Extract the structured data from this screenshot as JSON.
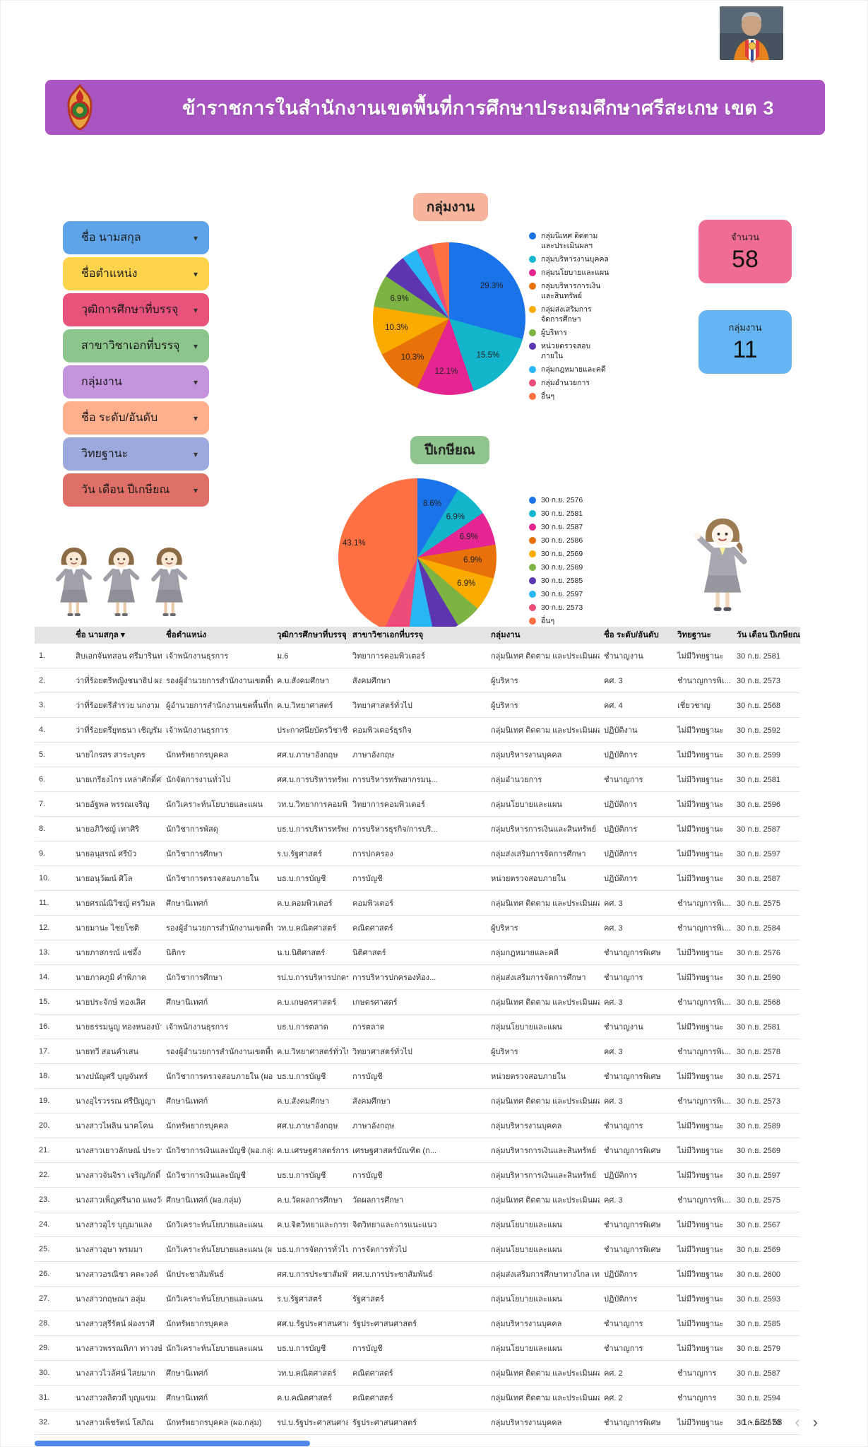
{
  "header": {
    "title": "ข้าราชการในสำนักงานเขตพื้นที่การศึกษาประถมศึกษาศรีสะเกษ เขต 3"
  },
  "filters": {
    "caret": "▾",
    "items": [
      {
        "label": "ชื่อ นามสกุล",
        "color": "#5FA4E8"
      },
      {
        "label": "ชื่อตำแหน่ง",
        "color": "#FFD44D"
      },
      {
        "label": "วุฒิการศึกษาที่บรรจุ",
        "color": "#E85479"
      },
      {
        "label": "สาขาวิชาเอกที่บรรจุ",
        "color": "#8CC68C"
      },
      {
        "label": "กลุ่มงาน",
        "color": "#C393DC"
      },
      {
        "label": "ชื่อ ระดับ/อันดับ",
        "color": "#FFAF8C"
      },
      {
        "label": "วิทยฐานะ",
        "color": "#9DA9DD"
      },
      {
        "label": "วัน เดือน ปีเกษียณ",
        "color": "#E07067"
      }
    ]
  },
  "stats": {
    "cards": [
      {
        "label": "จำนวน",
        "value": "58",
        "color": "#EF6C94"
      },
      {
        "label": "กลุ่มงาน",
        "value": "11",
        "color": "#66B5F3"
      }
    ]
  },
  "chart_data": [
    {
      "type": "pie",
      "title": "กลุ่มงาน",
      "legend_position": "right",
      "slices": [
        {
          "label": "กลุ่มนิเทศ ติดตาม และประเมินผลฯ",
          "value": 29.3,
          "color": "#1A73E8",
          "pct_label": "29.3%"
        },
        {
          "label": "กลุ่มบริหารงานบุคคล",
          "value": 15.5,
          "color": "#12B5CB",
          "pct_label": "15.5%"
        },
        {
          "label": "กลุ่มนโยบายและแผน",
          "value": 12.1,
          "color": "#E52592",
          "pct_label": "12.1%"
        },
        {
          "label": "กลุ่มบริหารการเงินและสินทรัพย์",
          "value": 10.3,
          "color": "#E8710A",
          "pct_label": "10.3%"
        },
        {
          "label": "กลุ่มส่งเสริมการจัดการศึกษา",
          "value": 10.3,
          "color": "#F9AB00",
          "pct_label": "10.3%"
        },
        {
          "label": "ผู้บริหาร",
          "value": 6.9,
          "color": "#7CB342",
          "pct_label": "6.9%"
        },
        {
          "label": "หน่วยตรวจสอบภายใน",
          "value": 5.2,
          "color": "#5E35B1",
          "pct_label": ""
        },
        {
          "label": "กลุ่มกฎหมายและคดี",
          "value": 3.4,
          "color": "#29B6F6",
          "pct_label": ""
        },
        {
          "label": "กลุ่มอำนวยการ",
          "value": 3.4,
          "color": "#ED4C78",
          "pct_label": ""
        },
        {
          "label": "อื่นๆ",
          "value": 3.6,
          "color": "#FF7043",
          "pct_label": ""
        }
      ]
    },
    {
      "type": "pie",
      "title": "ปีเกษียณ",
      "legend_position": "right",
      "slices": [
        {
          "label": "30 ก.ย. 2576",
          "value": 8.6,
          "color": "#1A73E8",
          "pct_label": "8.6%"
        },
        {
          "label": "30 ก.ย. 2581",
          "value": 6.9,
          "color": "#12B5CB",
          "pct_label": "6.9%"
        },
        {
          "label": "30 ก.ย. 2587",
          "value": 6.9,
          "color": "#E52592",
          "pct_label": "6.9%"
        },
        {
          "label": "30 ก.ย. 2586",
          "value": 6.9,
          "color": "#E8710A",
          "pct_label": "6.9%"
        },
        {
          "label": "30 ก.ย. 2569",
          "value": 6.9,
          "color": "#F9AB00",
          "pct_label": "6.9%"
        },
        {
          "label": "30 ก.ย. 2589",
          "value": 5.2,
          "color": "#7CB342",
          "pct_label": ""
        },
        {
          "label": "30 ก.ย. 2585",
          "value": 5.2,
          "color": "#5E35B1",
          "pct_label": ""
        },
        {
          "label": "30 ก.ย. 2597",
          "value": 5.2,
          "color": "#29B6F6",
          "pct_label": ""
        },
        {
          "label": "30 ก.ย. 2573",
          "value": 5.1,
          "color": "#ED4C78",
          "pct_label": ""
        },
        {
          "label": "อื่นๆ",
          "value": 43.1,
          "color": "#FF7043",
          "pct_label": "43.1%"
        }
      ]
    }
  ],
  "table": {
    "sort_index": 1,
    "sort_arrow": "▾",
    "columns": [
      "",
      "ชื่อ นามสกุล",
      "ชื่อตำแหน่ง",
      "วุฒิการศึกษาที่บรรจุ",
      "สาขาวิชาเอกที่บรรจุ",
      "กลุ่มงาน",
      "ชื่อ ระดับ/อันดับ",
      "วิทยฐานะ",
      "วัน เดือน ปีเกษียณ"
    ],
    "rows": [
      [
        "1.",
        "สิบเอกจันทสอน ศรีมารินทร์",
        "เจ้าพนักงานธุรการ",
        "ม.6",
        "วิทยาการคอมพิวเตอร์",
        "กลุ่มนิเทศ ติดตาม และประเมินผลฯ",
        "ชำนาญงาน",
        "ไม่มีวิทยฐานะ",
        "30 ก.ย. 2581"
      ],
      [
        "2.",
        "ว่าที่ร้อยตรีหญิงชนาธิป ผล...",
        "รองผู้อำนวยการสำนักงานเขตพื้นที่...",
        "ค.บ.สังคมศึกษา",
        "สังคมศึกษา",
        "ผู้บริหาร",
        "คศ. 3",
        "ชำนาญการพิเ...",
        "30 ก.ย. 2573"
      ],
      [
        "3.",
        "ว่าที่ร้อยตรีสำรวย นกงาม",
        "ผู้อำนวยการสำนักงานเขตพื้นที่การ...",
        "ค.บ.วิทยาศาสตร์",
        "วิทยาศาสตร์ทั่วไป",
        "ผู้บริหาร",
        "คศ. 4",
        "เชี่ยวชาญ",
        "30 ก.ย. 2568"
      ],
      [
        "4.",
        "ว่าที่ร้อยตรียุทธนา เชิญรัมย์",
        "เจ้าพนักงานธุรการ",
        "ประกาศนียบัตรวิชาชีพ ...",
        "คอมพิวเตอร์ธุรกิจ",
        "กลุ่มนิเทศ ติดตาม และประเมินผลฯ",
        "ปฏิบัติงาน",
        "ไม่มีวิทยฐานะ",
        "30 ก.ย. 2592"
      ],
      [
        "5.",
        "นายไกรสร สาระบุตร",
        "นักทรัพยากรบุคคล",
        "ศศ.บ.ภาษาอังกฤษ",
        "ภาษาอังกฤษ",
        "กลุ่มบริหารงานบุคคล",
        "ปฏิบัติการ",
        "ไม่มีวิทยฐานะ",
        "30 ก.ย. 2599"
      ],
      [
        "6.",
        "นายเกรียงไกร เหล่าศักดิ์ศรี",
        "นักจัดการงานทั่วไป",
        "ศศ.บ.การบริหารทรัพยา...",
        "การบริหารทรัพยากรมนุ...",
        "กลุ่มอำนวยการ",
        "ชำนาญการ",
        "ไม่มีวิทยฐานะ",
        "30 ก.ย. 2581"
      ],
      [
        "7.",
        "นายอัฐพล พรรณเจริญ",
        "นักวิเคราะห์นโยบายและแผน",
        "วท.บ.วิทยาการคอมพิวเ...",
        "วิทยาการคอมพิวเตอร์",
        "กลุ่มนโยบายและแผน",
        "ปฏิบัติการ",
        "ไม่มีวิทยฐานะ",
        "30 ก.ย. 2596"
      ],
      [
        "8.",
        "นายอภิวิชญ์ เทาศิริ",
        "นักวิชาการพัสดุ",
        "บธ.บ.การบริหารทรัพยา...",
        "การบริหารธุรกิจ/การบริ...",
        "กลุ่มบริหารการเงินและสินทรัพย์",
        "ปฏิบัติการ",
        "ไม่มีวิทยฐานะ",
        "30 ก.ย. 2587"
      ],
      [
        "9.",
        "นายอนุสรณ์ ศรีบัว",
        "นักวิชาการศึกษา",
        "ร.บ.รัฐศาสตร์",
        "การปกครอง",
        "กลุ่มส่งเสริมการจัดการศึกษา",
        "ปฏิบัติการ",
        "ไม่มีวิทยฐานะ",
        "30 ก.ย. 2597"
      ],
      [
        "10.",
        "นายอนุวัฒน์ ศิโล",
        "นักวิชาการตรวจสอบภายใน",
        "บธ.บ.การบัญชี",
        "การบัญชี",
        "หน่วยตรวจสอบภายใน",
        "ปฏิบัติการ",
        "ไม่มีวิทยฐานะ",
        "30 ก.ย. 2587"
      ],
      [
        "11.",
        "นายศรณ์ณิวิชญ์ ศรวิมล",
        "ศึกษานิเทศก์",
        "ค.บ.คอมพิวเตอร์",
        "คอมพิวเตอร์",
        "กลุ่มนิเทศ ติดตาม และประเมินผลฯ",
        "คศ. 3",
        "ชำนาญการพิเ...",
        "30 ก.ย. 2575"
      ],
      [
        "12.",
        "นายมานะ ไชยโชติ",
        "รองผู้อำนวยการสำนักงานเขตพื้นที่...",
        "วท.บ.คณิตศาสตร์",
        "คณิตศาสตร์",
        "ผู้บริหาร",
        "คศ. 3",
        "ชำนาญการพิเ...",
        "30 ก.ย. 2584"
      ],
      [
        "13.",
        "นายภาสกรณ์ แซ่อึ้ง",
        "นิติกร",
        "น.บ.นิติศาสตร์",
        "นิติศาสตร์",
        "กลุ่มกฎหมายและคดี",
        "ชำนาญการพิเศษ",
        "ไม่มีวิทยฐานะ",
        "30 ก.ย. 2576"
      ],
      [
        "14.",
        "นายภาคภูมิ คำพิภาค",
        "นักวิชาการศึกษา",
        "รป.บ.การบริหารปกครอ...",
        "การบริหารปกครองท้อง...",
        "กลุ่มส่งเสริมการจัดการศึกษา",
        "ชำนาญการ",
        "ไม่มีวิทยฐานะ",
        "30 ก.ย. 2590"
      ],
      [
        "15.",
        "นายประจักษ์ ทองเลิศ",
        "ศึกษานิเทศก์",
        "ค.บ.เกษตรศาสตร์",
        "เกษตรศาสตร์",
        "กลุ่มนิเทศ ติดตาม และประเมินผลฯ",
        "คศ. 3",
        "ชำนาญการพิเ...",
        "30 ก.ย. 2568"
      ],
      [
        "16.",
        "นายธรรมนูญ ทองหนองบัว",
        "เจ้าพนักงานธุรการ",
        "บธ.บ.การตลาด",
        "การตลาด",
        "กลุ่มนโยบายและแผน",
        "ชำนาญงาน",
        "ไม่มีวิทยฐานะ",
        "30 ก.ย. 2581"
      ],
      [
        "17.",
        "นายทวี สอนคำเสน",
        "รองผู้อำนวยการสำนักงานเขตพื้นที่...",
        "ค.บ.วิทยาศาสตร์ทั่วไป",
        "วิทยาศาสตร์ทั่วไป",
        "ผู้บริหาร",
        "คศ. 3",
        "ชำนาญการพิเ...",
        "30 ก.ย. 2578"
      ],
      [
        "18.",
        "นางปนัญศรี บุญจันทร์",
        "นักวิชาการตรวจสอบภายใน (ผอ.ก...",
        "บธ.บ.การบัญชี",
        "การบัญชี",
        "หน่วยตรวจสอบภายใน",
        "ชำนาญการพิเศษ",
        "ไม่มีวิทยฐานะ",
        "30 ก.ย. 2571"
      ],
      [
        "19.",
        "นางอุไรวรรณ ศรีปัญญา",
        "ศึกษานิเทศก์",
        "ค.บ.สังคมศึกษา",
        "สังคมศึกษา",
        "กลุ่มนิเทศ ติดตาม และประเมินผลฯ",
        "คศ. 3",
        "ชำนาญการพิเ...",
        "30 ก.ย. 2573"
      ],
      [
        "20.",
        "นางสาวไพลิน นาคโคน",
        "นักทรัพยากรบุคคล",
        "ศศ.บ.ภาษาอังกฤษ",
        "ภาษาอังกฤษ",
        "กลุ่มบริหารงานบุคคล",
        "ชำนาญการ",
        "ไม่มีวิทยฐานะ",
        "30 ก.ย. 2589"
      ],
      [
        "21.",
        "นางสาวเยาวลักษณ์ ประวาฬ",
        "นักวิชาการเงินและบัญชี (ผอ.กลุ่ม)",
        "ค.บ.เศรษฐศาสตร์การพั...",
        "เศรษฐศาสตร์บัณฑิต (ก...",
        "กลุ่มบริหารการเงินและสินทรัพย์",
        "ชำนาญการพิเศษ",
        "ไม่มีวิทยฐานะ",
        "30 ก.ย. 2569"
      ],
      [
        "22.",
        "นางสาวจันจิรา เจริญภักดิ์",
        "นักวิชาการเงินและบัญชี",
        "บธ.บ.การบัญชี",
        "การบัญชี",
        "กลุ่มบริหารการเงินและสินทรัพย์",
        "ปฏิบัติการ",
        "ไม่มีวิทยฐานะ",
        "30 ก.ย. 2597"
      ],
      [
        "23.",
        "นางสาวเพ็ญศรีนาถ แพงวัฒนะ",
        "ศึกษานิเทศก์ (ผอ.กลุ่ม)",
        "ค.บ.วัดผลการศึกษา",
        "วัดผลการศึกษา",
        "กลุ่มนิเทศ ติดตาม และประเมินผลฯ",
        "คศ. 3",
        "ชำนาญการพิเ...",
        "30 ก.ย. 2575"
      ],
      [
        "24.",
        "นางสาวอุไร บุญมาแลง",
        "นักวิเคราะห์นโยบายและแผน",
        "ค.บ.จิตวิทยาและการแนะ...",
        "จิตวิทยาและการแนะแนว",
        "กลุ่มนโยบายและแผน",
        "ชำนาญการพิเศษ",
        "ไม่มีวิทยฐานะ",
        "30 ก.ย. 2567"
      ],
      [
        "25.",
        "นางสาวอุษา พรมมา",
        "นักวิเคราะห์นโยบายและแผน (ผอ...",
        "บธ.บ.การจัดการทั่วไป",
        "การจัดการทั่วไป",
        "กลุ่มนโยบายและแผน",
        "ชำนาญการพิเศษ",
        "ไม่มีวิทยฐานะ",
        "30 ก.ย. 2569"
      ],
      [
        "26.",
        "นางสาวอรณิชา คตะวงค์",
        "นักประชาสัมพันธ์",
        "ศศ.บ.การประชาสัมพันธ์",
        "ศศ.บ.การประชาสัมพันธ์",
        "กลุ่มส่งเสริมการศึกษาทางไกล เท...",
        "ปฏิบัติการ",
        "ไม่มีวิทยฐานะ",
        "30 ก.ย. 2600"
      ],
      [
        "27.",
        "นางสาวกฤษณา อลุ่ม",
        "นักวิเคราะห์นโยบายและแผน",
        "ร.บ.รัฐศาสตร์",
        "รัฐศาสตร์",
        "กลุ่มนโยบายและแผน",
        "ปฏิบัติการ",
        "ไม่มีวิทยฐานะ",
        "30 ก.ย. 2593"
      ],
      [
        "28.",
        "นางสาวสุรีรัตน์ ผ่องราศี",
        "นักทรัพยากรบุคคล",
        "ศศ.บ.รัฐประศาสนศาสตร์",
        "รัฐประศาสนศาสตร์",
        "กลุ่มบริหารงานบุคคล",
        "ชำนาญการ",
        "ไม่มีวิทยฐานะ",
        "30 ก.ย. 2585"
      ],
      [
        "29.",
        "นางสาวพรรณทิภา ทาวงษ์",
        "นักวิเคราะห์นโยบายและแผน",
        "บธ.บ.การบัญชี",
        "การบัญชี",
        "กลุ่มนโยบายและแผน",
        "ชำนาญการ",
        "ไม่มีวิทยฐานะ",
        "30 ก.ย. 2579"
      ],
      [
        "30.",
        "นางสาวไวลัศน์ ไสยมาก",
        "ศึกษานิเทศก์",
        "วท.บ.คณิตศาสตร์",
        "คณิตศาสตร์",
        "กลุ่มนิเทศ ติดตาม และประเมินผล",
        "คศ. 2",
        "ชำนาญการ",
        "30 ก.ย. 2587"
      ],
      [
        "31.",
        "นางสาวลลิตวดี บุญแขม",
        "ศึกษานิเทศก์",
        "ค.บ.คณิตศาสตร์",
        "คณิตศาสตร์",
        "กลุ่มนิเทศ ติดตาม และประเมินผล",
        "คศ. 2",
        "ชำนาญการ",
        "30 ก.ย. 2594"
      ],
      [
        "32.",
        "นางสาวเพ็ชรัตน์ โสภิณ",
        "นักทรัพยากรบุคคล (ผอ.กลุ่ม)",
        "รป.บ.รัฐประศาสนศาสตร์",
        "รัฐประศาสนศาสตร์",
        "กลุ่มบริหารงานบุคคล",
        "ชำนาญการพิเศษ",
        "ไม่มีวิทยฐานะ",
        "30 ก.ย. 2570"
      ]
    ]
  },
  "pagination": {
    "label": "1 - 58 / 58",
    "prev_icon": "‹",
    "next_icon": "›"
  }
}
